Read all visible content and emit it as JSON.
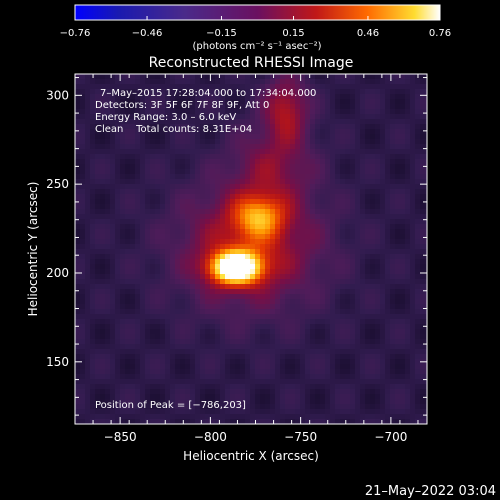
{
  "chart_data": {
    "type": "heatmap",
    "title": "Reconstructed RHESSI Image",
    "xlabel": "Heliocentric X (arcsec)",
    "ylabel": "Heliocentric Y (arcsec)",
    "xlim": [
      -875,
      -680
    ],
    "ylim": [
      115,
      312
    ],
    "xticks": [
      -850,
      -800,
      -750,
      -700
    ],
    "yticks": [
      150,
      200,
      250,
      300
    ],
    "xtick_labels": [
      "−850",
      "−800",
      "−750",
      "−700"
    ],
    "ytick_labels": [
      "150",
      "200",
      "250",
      "300"
    ],
    "colorbar": {
      "min": -0.76,
      "max": 0.76,
      "ticks": [
        -0.76,
        -0.46,
        -0.15,
        0.15,
        0.46,
        0.76
      ],
      "tick_labels": [
        "−0.76",
        "−0.46",
        "−0.15",
        "0.15",
        "0.46",
        "0.76"
      ],
      "unit_label": "(photons cm⁻² s⁻¹ asec⁻²)"
    },
    "annotations": {
      "time_range": "7–May–2015 17:28:04.000 to 17:34:04.000",
      "detectors": "Detectors: 3F 5F 6F 7F 8F 9F, Att 0",
      "energy_range": "Energy Range: 3.0 – 6.0 keV",
      "clean_counts": "Clean    Total counts: 8.31E+04",
      "peak_position": "Position of Peak = [−786,203]"
    },
    "sources": [
      {
        "x": -786,
        "y": 203,
        "peak": 0.76
      },
      {
        "x": -773,
        "y": 232,
        "peak": 0.4
      },
      {
        "x": -758,
        "y": 293,
        "peak": 0.35
      }
    ],
    "background": 0.08
  },
  "footer": {
    "date_stamp": "21–May–2022 03:04"
  },
  "colors": {
    "background": "#000000",
    "axis": "#ffffff",
    "map_low": "#3a1c5c",
    "map_high": "#ffffff"
  }
}
